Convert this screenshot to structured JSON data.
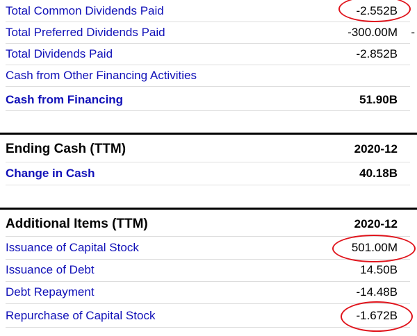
{
  "financing": {
    "rows": [
      {
        "label": "Total Common Dividends Paid",
        "value": "-2.552B"
      },
      {
        "label": "Total Preferred Dividends Paid",
        "value": "-300.00M"
      },
      {
        "label": "Total Dividends Paid",
        "value": "-2.852B"
      },
      {
        "label": "Cash from Other Financing Activities",
        "value": ""
      },
      {
        "label": "Cash from Financing",
        "value": "51.90B"
      }
    ],
    "preferred_trailing": "-"
  },
  "ending_cash": {
    "title": "Ending Cash (TTM)",
    "period": "2020-12",
    "rows": [
      {
        "label": "Change in Cash",
        "value": "40.18B"
      }
    ]
  },
  "additional": {
    "title": "Additional Items (TTM)",
    "period": "2020-12",
    "rows": [
      {
        "label": "Issuance of Capital Stock",
        "value": "501.00M"
      },
      {
        "label": "Issuance of Debt",
        "value": "14.50B"
      },
      {
        "label": "Debt Repayment",
        "value": "-14.48B"
      },
      {
        "label": "Repurchase of Capital Stock",
        "value": "-1.672B"
      }
    ]
  },
  "colors": {
    "link": "#1010b8",
    "annotation": "#e0141c"
  }
}
